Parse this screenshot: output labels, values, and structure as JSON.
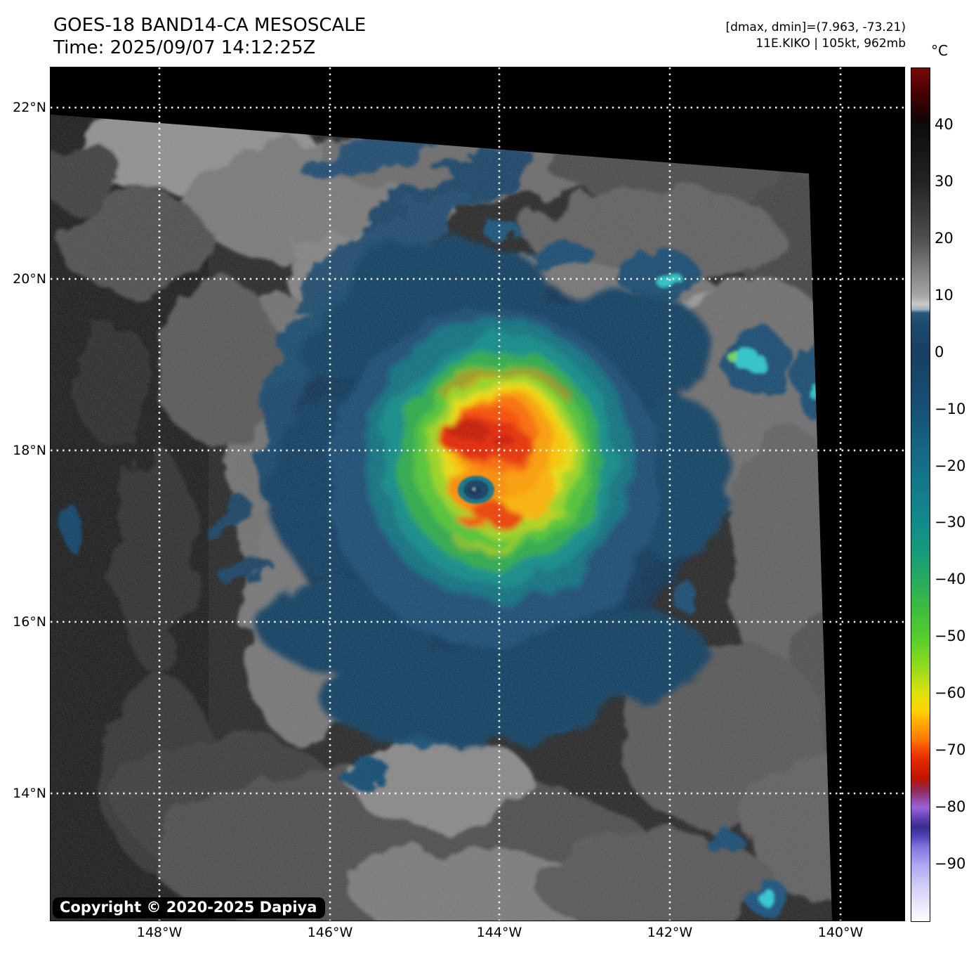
{
  "header": {
    "title": "GOES-18 BAND14-CA MESOSCALE",
    "time": "Time: 2025/09/07 14:12:25Z",
    "range_info": "[dmax, dmin]=(7.963, -73.21)",
    "storm_info": "11E.KIKO | 105kt, 962mb"
  },
  "map": {
    "copyright": "Copyright © 2020-2025 Dapiya",
    "xticks": [
      {
        "label": "148°W",
        "f": 0.1275
      },
      {
        "label": "146°W",
        "f": 0.3273
      },
      {
        "label": "144°W",
        "f": 0.5255
      },
      {
        "label": "142°W",
        "f": 0.7253
      },
      {
        "label": "140°W",
        "f": 0.9252
      }
    ],
    "yticks": [
      {
        "label": "22°N",
        "f": 0.047
      },
      {
        "label": "20°N",
        "f": 0.2479
      },
      {
        "label": "18°N",
        "f": 0.4489
      },
      {
        "label": "16°N",
        "f": 0.6499
      },
      {
        "label": "14°N",
        "f": 0.8509
      }
    ]
  },
  "colorbar": {
    "unit": "°C",
    "vmax": 50,
    "vmin": -100,
    "ticks": [
      {
        "label": "40",
        "value": 40
      },
      {
        "label": "30",
        "value": 30
      },
      {
        "label": "20",
        "value": 20
      },
      {
        "label": "10",
        "value": 10
      },
      {
        "label": "0",
        "value": 0
      },
      {
        "label": "−10",
        "value": -10
      },
      {
        "label": "−20",
        "value": -20
      },
      {
        "label": "−30",
        "value": -30
      },
      {
        "label": "−40",
        "value": -40
      },
      {
        "label": "−50",
        "value": -50
      },
      {
        "label": "−60",
        "value": -60
      },
      {
        "label": "−70",
        "value": -70
      },
      {
        "label": "−80",
        "value": -80
      },
      {
        "label": "−90",
        "value": -90
      }
    ],
    "stops": [
      {
        "v": 50,
        "c": "#7c0808"
      },
      {
        "v": 46,
        "c": "#4a0202"
      },
      {
        "v": 41,
        "c": "#150404"
      },
      {
        "v": 40,
        "c": "#0c0c0c"
      },
      {
        "v": 30,
        "c": "#232323"
      },
      {
        "v": 20,
        "c": "#4f4f4f"
      },
      {
        "v": 10,
        "c": "#a6a6a6"
      },
      {
        "v": 8.5,
        "c": "#c9c9c9"
      },
      {
        "v": 7.6,
        "c": "#9fb3c0"
      },
      {
        "v": 7.0,
        "c": "#2b5878"
      },
      {
        "v": 5,
        "c": "#1c4a70"
      },
      {
        "v": 0,
        "c": "#173f63"
      },
      {
        "v": -10,
        "c": "#175075"
      },
      {
        "v": -20,
        "c": "#156f8a"
      },
      {
        "v": -30,
        "c": "#128a8c"
      },
      {
        "v": -35,
        "c": "#169a7a"
      },
      {
        "v": -40,
        "c": "#27ab5e"
      },
      {
        "v": -45,
        "c": "#3cbc40"
      },
      {
        "v": -50,
        "c": "#55cd2c"
      },
      {
        "v": -55,
        "c": "#8eda1b"
      },
      {
        "v": -60,
        "c": "#dfe20d"
      },
      {
        "v": -63,
        "c": "#fdd303"
      },
      {
        "v": -65,
        "c": "#ffab00"
      },
      {
        "v": -68,
        "c": "#ff7a00"
      },
      {
        "v": -70,
        "c": "#f54400"
      },
      {
        "v": -72,
        "c": "#e02600"
      },
      {
        "v": -75,
        "c": "#bc1500"
      },
      {
        "v": -77,
        "c": "#8e2a5e"
      },
      {
        "v": -80,
        "c": "#9a63d8"
      },
      {
        "v": -82,
        "c": "#5d3fb0"
      },
      {
        "v": -83.5,
        "c": "#362e8c"
      },
      {
        "v": -85,
        "c": "#4d44b4"
      },
      {
        "v": -87,
        "c": "#7f76e0"
      },
      {
        "v": -90,
        "c": "#aca6ef"
      },
      {
        "v": -94,
        "c": "#d2cff7"
      },
      {
        "v": -100,
        "c": "#ffffff"
      }
    ]
  }
}
